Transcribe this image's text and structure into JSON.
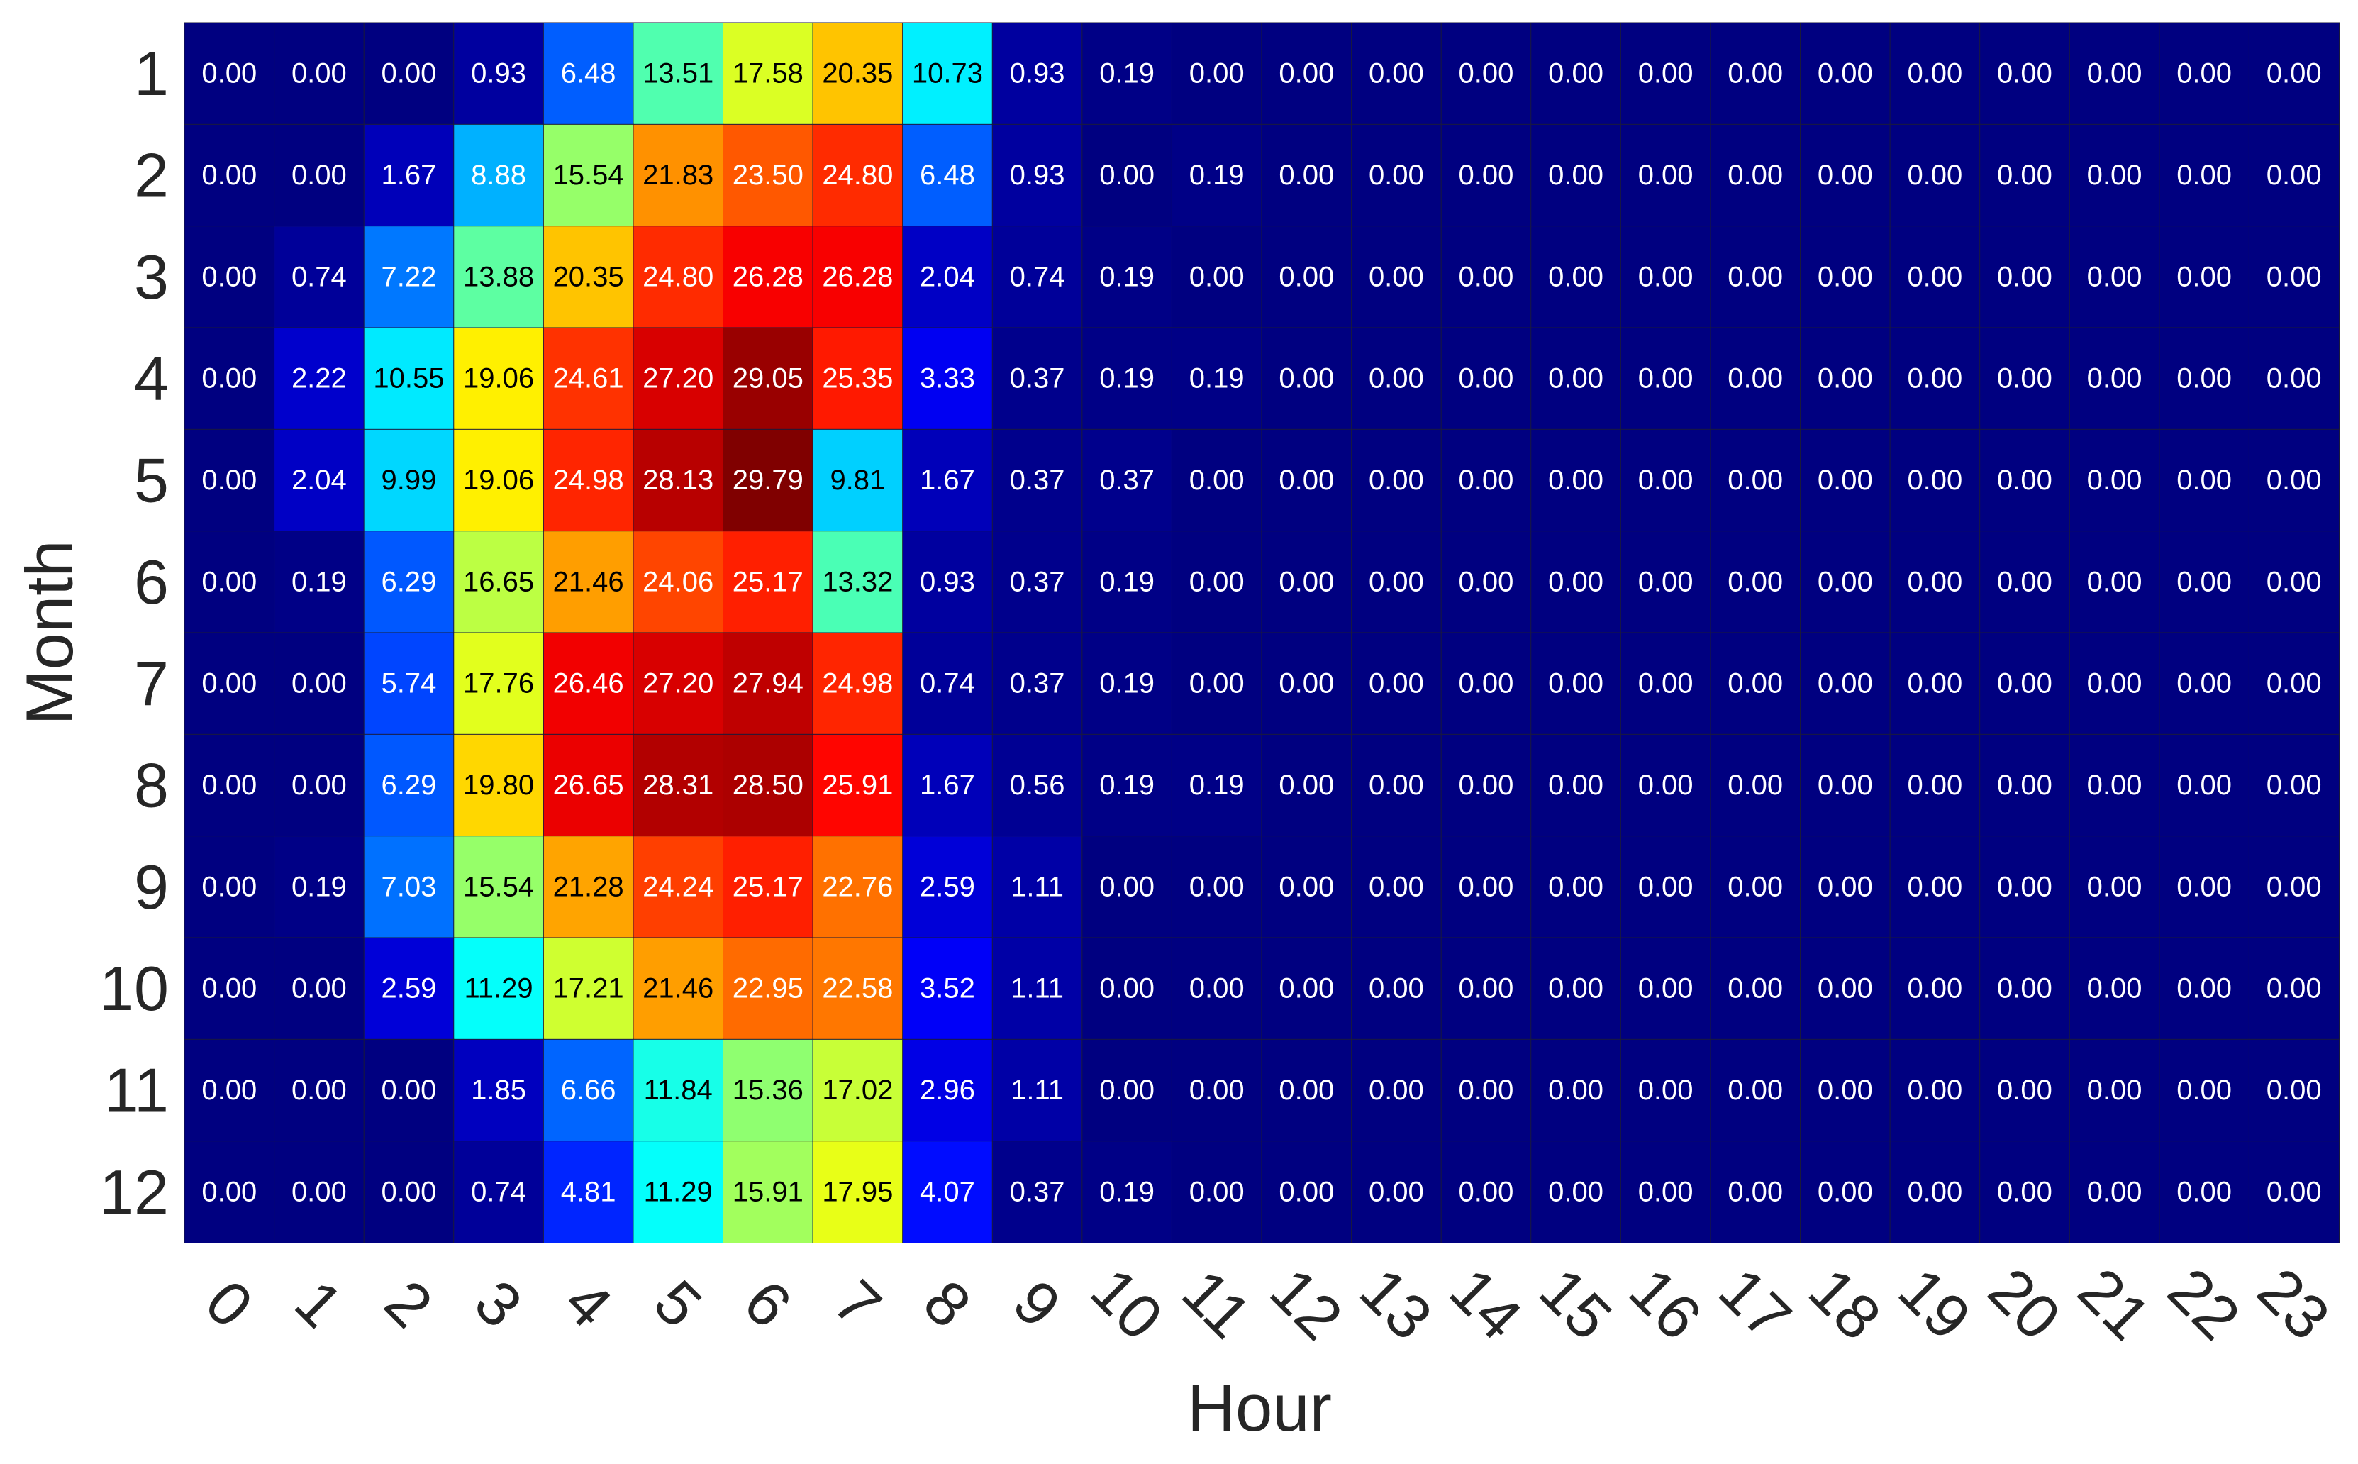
{
  "chart_data": {
    "type": "heatmap",
    "title": "",
    "xlabel": "Hour",
    "ylabel": "Month",
    "colormap": "jet",
    "value_range": [
      0,
      29.79
    ],
    "grid": false,
    "legend": "none",
    "x_categories": [
      "0",
      "1",
      "2",
      "3",
      "4",
      "5",
      "6",
      "7",
      "8",
      "9",
      "10",
      "11",
      "12",
      "13",
      "14",
      "15",
      "16",
      "17",
      "18",
      "19",
      "20",
      "21",
      "22",
      "23"
    ],
    "y_categories": [
      "1",
      "2",
      "3",
      "4",
      "5",
      "6",
      "7",
      "8",
      "9",
      "10",
      "11",
      "12"
    ],
    "values": [
      [
        "0.00",
        "0.00",
        "0.00",
        "0.93",
        "6.48",
        "13.51",
        "17.58",
        "20.35",
        "10.73",
        "0.93",
        "0.19",
        "0.00",
        "0.00",
        "0.00",
        "0.00",
        "0.00",
        "0.00",
        "0.00",
        "0.00",
        "0.00",
        "0.00",
        "0.00",
        "0.00",
        "0.00"
      ],
      [
        "0.00",
        "0.00",
        "1.67",
        "8.88",
        "15.54",
        "21.83",
        "23.50",
        "24.80",
        "6.48",
        "0.93",
        "0.00",
        "0.19",
        "0.00",
        "0.00",
        "0.00",
        "0.00",
        "0.00",
        "0.00",
        "0.00",
        "0.00",
        "0.00",
        "0.00",
        "0.00",
        "0.00"
      ],
      [
        "0.00",
        "0.74",
        "7.22",
        "13.88",
        "20.35",
        "24.80",
        "26.28",
        "26.28",
        "2.04",
        "0.74",
        "0.19",
        "0.00",
        "0.00",
        "0.00",
        "0.00",
        "0.00",
        "0.00",
        "0.00",
        "0.00",
        "0.00",
        "0.00",
        "0.00",
        "0.00",
        "0.00"
      ],
      [
        "0.00",
        "2.22",
        "10.55",
        "19.06",
        "24.61",
        "27.20",
        "29.05",
        "25.35",
        "3.33",
        "0.37",
        "0.19",
        "0.19",
        "0.00",
        "0.00",
        "0.00",
        "0.00",
        "0.00",
        "0.00",
        "0.00",
        "0.00",
        "0.00",
        "0.00",
        "0.00",
        "0.00"
      ],
      [
        "0.00",
        "2.04",
        "9.99",
        "19.06",
        "24.98",
        "28.13",
        "29.79",
        "9.81",
        "1.67",
        "0.37",
        "0.37",
        "0.00",
        "0.00",
        "0.00",
        "0.00",
        "0.00",
        "0.00",
        "0.00",
        "0.00",
        "0.00",
        "0.00",
        "0.00",
        "0.00",
        "0.00"
      ],
      [
        "0.00",
        "0.19",
        "6.29",
        "16.65",
        "21.46",
        "24.06",
        "25.17",
        "13.32",
        "0.93",
        "0.37",
        "0.19",
        "0.00",
        "0.00",
        "0.00",
        "0.00",
        "0.00",
        "0.00",
        "0.00",
        "0.00",
        "0.00",
        "0.00",
        "0.00",
        "0.00",
        "0.00"
      ],
      [
        "0.00",
        "0.00",
        "5.74",
        "17.76",
        "26.46",
        "27.20",
        "27.94",
        "24.98",
        "0.74",
        "0.37",
        "0.19",
        "0.00",
        "0.00",
        "0.00",
        "0.00",
        "0.00",
        "0.00",
        "0.00",
        "0.00",
        "0.00",
        "0.00",
        "0.00",
        "0.00",
        "0.00"
      ],
      [
        "0.00",
        "0.00",
        "6.29",
        "19.80",
        "26.65",
        "28.31",
        "28.50",
        "25.91",
        "1.67",
        "0.56",
        "0.19",
        "0.19",
        "0.00",
        "0.00",
        "0.00",
        "0.00",
        "0.00",
        "0.00",
        "0.00",
        "0.00",
        "0.00",
        "0.00",
        "0.00",
        "0.00"
      ],
      [
        "0.00",
        "0.19",
        "7.03",
        "15.54",
        "21.28",
        "24.24",
        "25.17",
        "22.76",
        "2.59",
        "1.11",
        "0.00",
        "0.00",
        "0.00",
        "0.00",
        "0.00",
        "0.00",
        "0.00",
        "0.00",
        "0.00",
        "0.00",
        "0.00",
        "0.00",
        "0.00",
        "0.00"
      ],
      [
        "0.00",
        "0.00",
        "2.59",
        "11.29",
        "17.21",
        "21.46",
        "22.95",
        "22.58",
        "3.52",
        "1.11",
        "0.00",
        "0.00",
        "0.00",
        "0.00",
        "0.00",
        "0.00",
        "0.00",
        "0.00",
        "0.00",
        "0.00",
        "0.00",
        "0.00",
        "0.00",
        "0.00"
      ],
      [
        "0.00",
        "0.00",
        "0.00",
        "1.85",
        "6.66",
        "11.84",
        "15.36",
        "17.02",
        "2.96",
        "1.11",
        "0.00",
        "0.00",
        "0.00",
        "0.00",
        "0.00",
        "0.00",
        "0.00",
        "0.00",
        "0.00",
        "0.00",
        "0.00",
        "0.00",
        "0.00",
        "0.00"
      ],
      [
        "0.00",
        "0.00",
        "0.00",
        "0.74",
        "4.81",
        "11.29",
        "15.91",
        "17.95",
        "4.07",
        "0.37",
        "0.19",
        "0.00",
        "0.00",
        "0.00",
        "0.00",
        "0.00",
        "0.00",
        "0.00",
        "0.00",
        "0.00",
        "0.00",
        "0.00",
        "0.00",
        "0.00"
      ]
    ]
  }
}
